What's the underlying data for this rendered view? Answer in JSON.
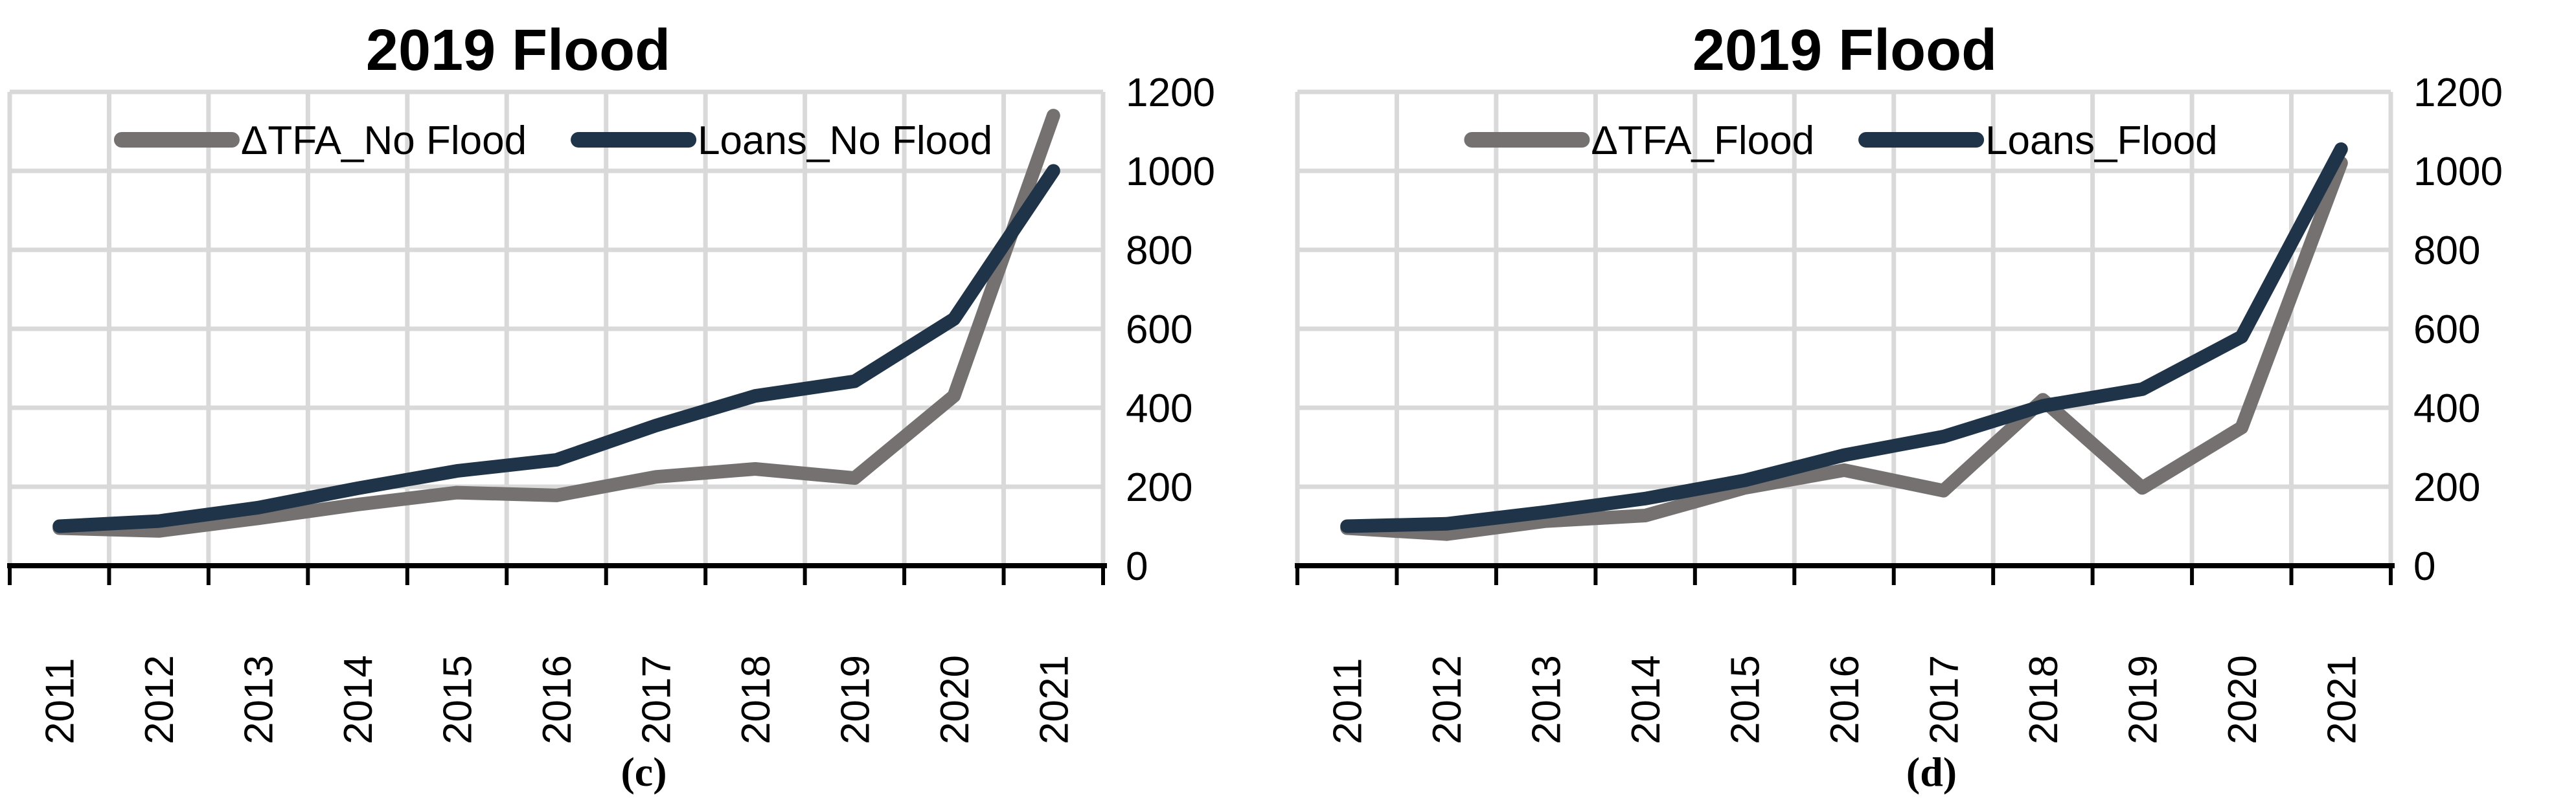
{
  "figure": {
    "background": "#ffffff",
    "description": "Two side-by-side Excel-style line charts comparing total fixed assets change and loans, 2011-2021"
  },
  "colors": {
    "gridline": "#d9d9d9",
    "axis": "#000000",
    "text": "#000000",
    "series_gray": "#757170",
    "series_navy": "#1f3449"
  },
  "chart_data": [
    {
      "type": "line",
      "title": "2019 Flood",
      "caption": "(c)",
      "categories": [
        "2011",
        "2012",
        "2013",
        "2014",
        "2015",
        "2016",
        "2017",
        "2018",
        "2019",
        "2020",
        "2021"
      ],
      "series": [
        {
          "name": "ΔTFA_No Flood",
          "color": "#757170",
          "values": [
            95,
            88,
            120,
            155,
            185,
            178,
            225,
            245,
            222,
            430,
            1140
          ]
        },
        {
          "name": "Loans_No Flood",
          "color": "#1f3449",
          "values": [
            100,
            113,
            147,
            196,
            240,
            268,
            355,
            430,
            467,
            625,
            1000
          ]
        }
      ],
      "xlabel": "",
      "ylabel": "",
      "ylim": [
        0,
        1200
      ],
      "yticks": [
        0,
        200,
        400,
        600,
        800,
        1000,
        1200
      ],
      "grid": true,
      "legend_position": "top-center-inside",
      "x_label_rotation": -90,
      "y_axis_side": "right"
    },
    {
      "type": "line",
      "title": "2019 Flood",
      "caption": "(d)",
      "categories": [
        "2011",
        "2012",
        "2013",
        "2014",
        "2015",
        "2016",
        "2017",
        "2018",
        "2019",
        "2020",
        "2021"
      ],
      "series": [
        {
          "name": "ΔTFA_Flood",
          "color": "#757170",
          "values": [
            95,
            80,
            113,
            127,
            197,
            242,
            190,
            420,
            197,
            350,
            1020
          ]
        },
        {
          "name": "Loans_Flood",
          "color": "#1f3449",
          "values": [
            100,
            106,
            136,
            170,
            216,
            280,
            327,
            405,
            447,
            580,
            1055
          ]
        }
      ],
      "xlabel": "",
      "ylabel": "",
      "ylim": [
        0,
        1200
      ],
      "yticks": [
        0,
        200,
        400,
        600,
        800,
        1000,
        1200
      ],
      "grid": true,
      "legend_position": "top-center-inside",
      "x_label_rotation": -90,
      "y_axis_side": "right"
    }
  ]
}
